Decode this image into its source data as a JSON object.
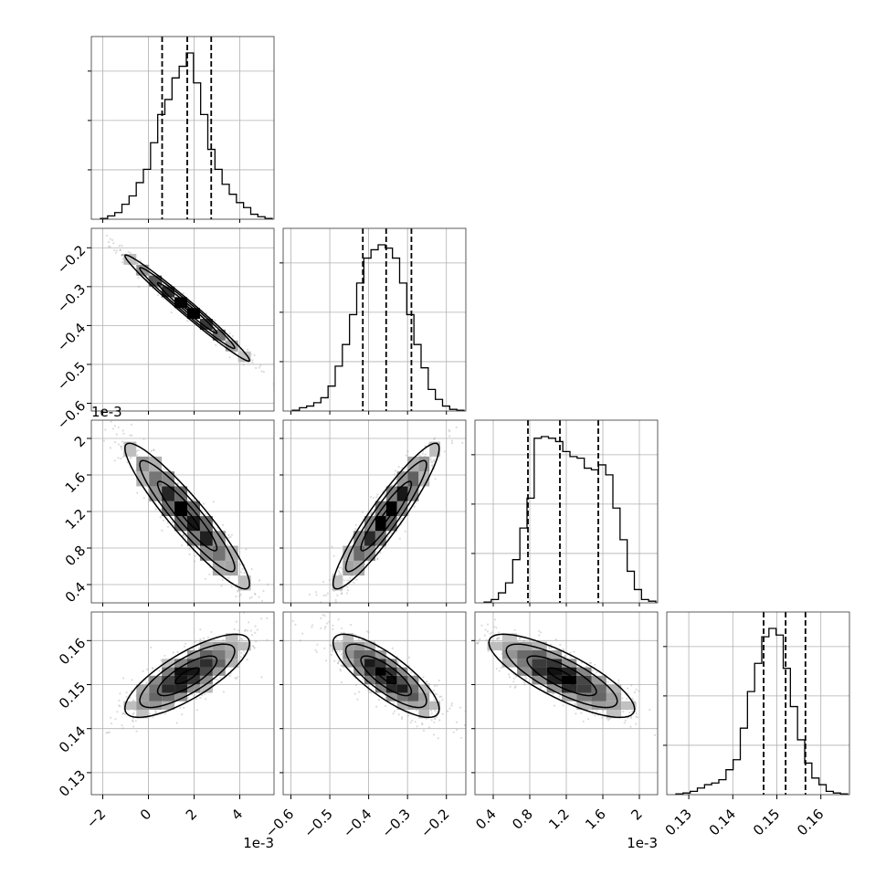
{
  "chart_data": {
    "type": "corner",
    "diag_ticks": 3,
    "params": [
      {
        "ticks": [
          -2,
          0,
          2,
          4
        ],
        "range": [
          -2.5,
          5.5
        ],
        "multiplier": "1e-3",
        "mean": 1.7,
        "std": 1.3,
        "quantiles": [
          0.6,
          1.7,
          2.75
        ],
        "hist": [
          0.005,
          0.02,
          0.04,
          0.09,
          0.14,
          0.22,
          0.3,
          0.46,
          0.63,
          0.72,
          0.85,
          0.92,
          1.0,
          0.82,
          0.63,
          0.42,
          0.3,
          0.21,
          0.15,
          0.1,
          0.07,
          0.03,
          0.015,
          0.005
        ]
      },
      {
        "ticks": [
          -0.6,
          -0.5,
          -0.4,
          -0.3,
          -0.2
        ],
        "range": [
          -0.62,
          -0.15
        ],
        "multiplier": "",
        "mean": -0.355,
        "std": 0.065,
        "quantiles": [
          -0.415,
          -0.355,
          -0.29
        ],
        "hist": [
          0.005,
          0.02,
          0.03,
          0.05,
          0.08,
          0.15,
          0.27,
          0.4,
          0.58,
          0.77,
          0.92,
          0.97,
          1.0,
          0.98,
          0.92,
          0.77,
          0.58,
          0.4,
          0.26,
          0.13,
          0.07,
          0.03,
          0.01,
          0.005
        ]
      },
      {
        "ticks": [
          0.4,
          0.8,
          1.2,
          1.6,
          2.0
        ],
        "range": [
          0.2,
          2.2
        ],
        "multiplier": "1e-3",
        "mean": 1.15,
        "std": 0.38,
        "quantiles": [
          0.78,
          1.13,
          1.55
        ],
        "hist": [
          0.005,
          0.02,
          0.06,
          0.12,
          0.26,
          0.45,
          0.63,
          0.99,
          1.0,
          0.99,
          0.97,
          0.91,
          0.88,
          0.87,
          0.81,
          0.8,
          0.83,
          0.77,
          0.57,
          0.38,
          0.19,
          0.08,
          0.02,
          0.01
        ]
      },
      {
        "ticks": [
          0.13,
          0.14,
          0.15,
          0.16
        ],
        "range": [
          0.125,
          0.1665
        ],
        "multiplier": "",
        "mean": 0.152,
        "std": 0.0045,
        "quantiles": [
          0.147,
          0.152,
          0.1565
        ],
        "hist": [
          0.005,
          0.01,
          0.02,
          0.04,
          0.06,
          0.07,
          0.09,
          0.15,
          0.21,
          0.4,
          0.62,
          0.79,
          0.95,
          1.0,
          0.96,
          0.76,
          0.53,
          0.33,
          0.19,
          0.1,
          0.06,
          0.02,
          0.01,
          0.005
        ]
      }
    ],
    "pairs": [
      {
        "row": 1,
        "col": 0,
        "rho": -0.985
      },
      {
        "row": 2,
        "col": 0,
        "rho": -0.93
      },
      {
        "row": 2,
        "col": 1,
        "rho": 0.93
      },
      {
        "row": 3,
        "col": 0,
        "rho": 0.78
      },
      {
        "row": 3,
        "col": 1,
        "rho": -0.8
      },
      {
        "row": 3,
        "col": 2,
        "rho": -0.8
      }
    ],
    "grid": true,
    "colors": {
      "line": "#000000",
      "points": "#9a9a9a",
      "grid": "#b0b0b0",
      "density_dark": "#000000",
      "density_light": "#d8d8d8"
    }
  }
}
